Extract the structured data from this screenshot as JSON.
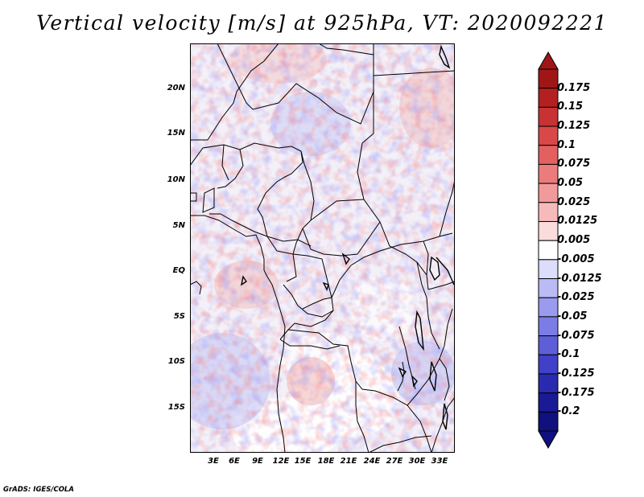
{
  "title": "Vertical velocity [m/s] at 925hPa, VT: 2020092221",
  "credit": "GrADS: IGES/COLA",
  "map": {
    "lat_labels": [
      "20N",
      "15N",
      "10N",
      "5N",
      "EQ",
      "5S",
      "10S",
      "15S"
    ],
    "lon_labels": [
      "3E",
      "6E",
      "9E",
      "12E",
      "15E",
      "18E",
      "21E",
      "24E",
      "27E",
      "30E",
      "33E"
    ]
  },
  "colorbar": {
    "labels": [
      "0.175",
      "0.15",
      "0.125",
      "0.1",
      "0.075",
      "0.05",
      "0.025",
      "0.0125",
      "0.005",
      "-0.005",
      "-0.0125",
      "-0.025",
      "-0.05",
      "-0.075",
      "-0.1",
      "-0.125",
      "-0.175",
      "-0.2"
    ],
    "colors": [
      "#a01616",
      "#b42020",
      "#c83232",
      "#d84848",
      "#e46060",
      "#ec7c7c",
      "#f29a9a",
      "#f7baba",
      "#fbdcdc",
      "#ffffff",
      "#dcdcfb",
      "#babaf5",
      "#9a9aef",
      "#7c7ce6",
      "#5e5ed8",
      "#4040c8",
      "#2a2ab0",
      "#1a1a96",
      "#10107e",
      "#a01616"
    ]
  }
}
